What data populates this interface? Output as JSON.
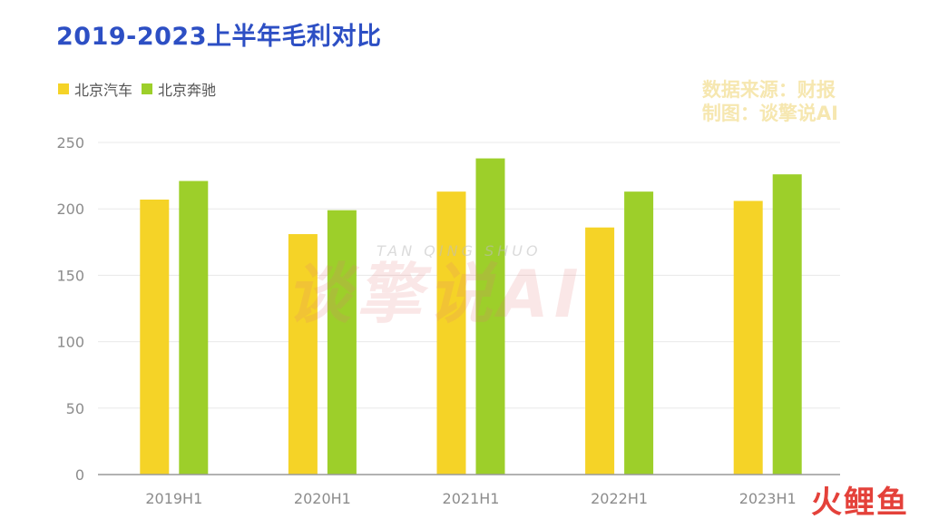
{
  "title": "2019-2023上半年毛利对比",
  "source": {
    "line1": "数据来源：财报",
    "line2": "制图：谈擎说AI"
  },
  "watermark": {
    "text": "谈擎说AI",
    "sub": "TAN QING SHUO"
  },
  "corner_logo": "火鲤鱼",
  "colors": {
    "series1": "#f5d327",
    "series2": "#9dcf2a",
    "axis": "#999999",
    "grid": "#e8e8e8",
    "tick_text": "#8c8c8c"
  },
  "chart_data": {
    "type": "bar",
    "categories": [
      "2019H1",
      "2020H1",
      "2021H1",
      "2022H1",
      "2023H1"
    ],
    "series": [
      {
        "name": "北京汽车",
        "values": [
          207,
          181,
          213,
          186,
          206
        ]
      },
      {
        "name": "北京奔驰",
        "values": [
          221,
          199,
          238,
          213,
          226
        ]
      }
    ],
    "ylim": [
      0,
      250
    ],
    "yticks": [
      0,
      50,
      100,
      150,
      200,
      250
    ],
    "grid": true,
    "legend": "top-left"
  }
}
